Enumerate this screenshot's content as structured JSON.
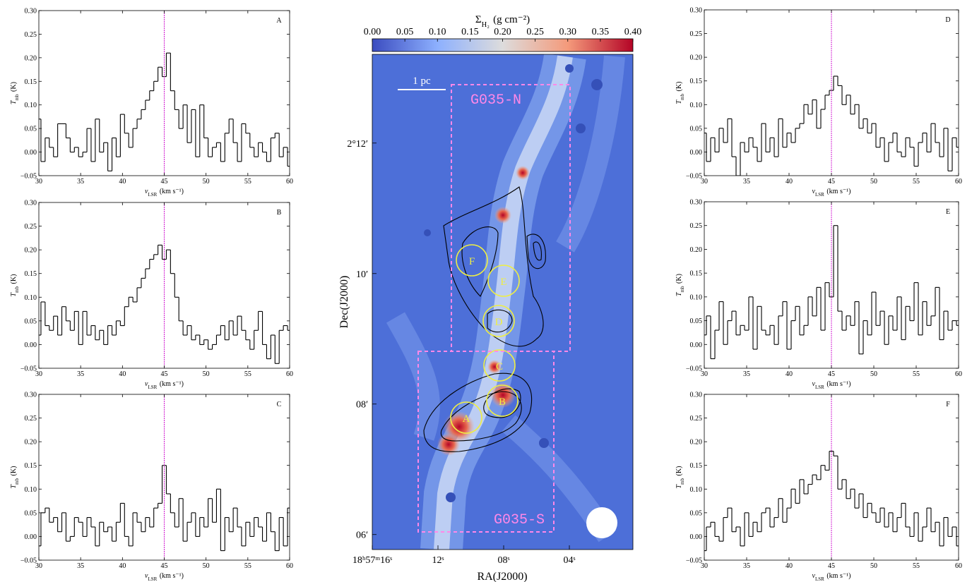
{
  "chart_data": [
    {
      "type": "step",
      "label": "A",
      "color": "#000000",
      "vline": 45,
      "vline_color": "#cc00cc",
      "x": [
        30,
        30.5,
        31,
        31.5,
        32,
        32.5,
        33,
        33.5,
        34,
        34.5,
        35,
        35.5,
        36,
        36.5,
        37,
        37.5,
        38,
        38.5,
        39,
        39.5,
        40,
        40.5,
        41,
        41.5,
        42,
        42.5,
        43,
        43.5,
        44,
        44.5,
        45,
        45.5,
        46,
        46.5,
        47,
        47.5,
        48,
        48.5,
        49,
        49.5,
        50,
        50.5,
        51,
        51.5,
        52,
        52.5,
        53,
        53.5,
        54,
        54.5,
        55,
        55.5,
        56,
        56.5,
        57,
        57.5,
        58,
        58.5,
        59,
        59.5,
        60
      ],
      "values": [
        0.07,
        -0.02,
        0.03,
        0.01,
        -0.01,
        0.06,
        0.06,
        0.03,
        0.0,
        0.01,
        -0.01,
        0.0,
        0.05,
        -0.02,
        0.07,
        0.0,
        0.02,
        -0.04,
        0.03,
        -0.01,
        0.08,
        0.04,
        0.01,
        0.05,
        0.07,
        0.09,
        0.11,
        0.13,
        0.15,
        0.18,
        0.16,
        0.21,
        0.13,
        0.09,
        0.05,
        0.1,
        0.02,
        0.09,
        -0.01,
        0.1,
        0.03,
        -0.01,
        0.01,
        0.02,
        -0.02,
        0.04,
        0.07,
        0.02,
        -0.02,
        0.06,
        0.04,
        0.01,
        -0.01,
        0.02,
        0.0,
        -0.02,
        0.03,
        0.04,
        -0.01,
        0.01,
        -0.03
      ],
      "xlim": [
        30,
        60
      ],
      "ylim": [
        -0.05,
        0.3
      ],
      "xticks": [
        30,
        35,
        40,
        45,
        50,
        55,
        60
      ],
      "yticks": [
        {
          "value": -0.05,
          "label": "−0.05"
        },
        {
          "value": 0,
          "label": "0.00"
        },
        {
          "value": 0.05,
          "label": "0.05"
        },
        {
          "value": 0.1,
          "label": "0.10"
        },
        {
          "value": 0.15,
          "label": "0.15"
        },
        {
          "value": 0.2,
          "label": "0.20"
        },
        {
          "value": 0.25,
          "label": "0.25"
        },
        {
          "value": 0.3,
          "label": "0.30"
        }
      ],
      "xlabel": {
        "main": "v",
        "sub": "LSR",
        "rest": "(km s⁻¹)"
      },
      "ylabel": {
        "main": "T",
        "sub": "mb",
        "rest": "(K)"
      }
    },
    {
      "type": "step",
      "label": "B",
      "color": "#000000",
      "vline": 45,
      "vline_color": "#cc00cc",
      "x": [
        30,
        30.5,
        31,
        31.5,
        32,
        32.5,
        33,
        33.5,
        34,
        34.5,
        35,
        35.5,
        36,
        36.5,
        37,
        37.5,
        38,
        38.5,
        39,
        39.5,
        40,
        40.5,
        41,
        41.5,
        42,
        42.5,
        43,
        43.5,
        44,
        44.5,
        45,
        45.5,
        46,
        46.5,
        47,
        47.5,
        48,
        48.5,
        49,
        49.5,
        50,
        50.5,
        51,
        51.5,
        52,
        52.5,
        53,
        53.5,
        54,
        54.5,
        55,
        55.5,
        56,
        56.5,
        57,
        57.5,
        58,
        58.5,
        59,
        59.5,
        60
      ],
      "values": [
        0.02,
        0.09,
        0.04,
        0.03,
        0.06,
        0.02,
        0.08,
        0.05,
        0.03,
        0.07,
        0.0,
        0.07,
        0.02,
        0.04,
        0.01,
        0.03,
        0.0,
        0.04,
        0.02,
        0.05,
        0.04,
        0.08,
        0.1,
        0.09,
        0.12,
        0.14,
        0.16,
        0.18,
        0.19,
        0.21,
        0.18,
        0.2,
        0.15,
        0.1,
        0.05,
        0.02,
        0.04,
        0.01,
        0.02,
        0.0,
        0.01,
        -0.01,
        0.0,
        0.02,
        0.04,
        0.01,
        0.05,
        0.02,
        0.06,
        0.03,
        0.01,
        -0.01,
        0.03,
        0.07,
        0.0,
        -0.03,
        0.02,
        -0.04,
        0.03,
        0.04,
        0.03
      ],
      "xlim": [
        30,
        60
      ],
      "ylim": [
        -0.05,
        0.3
      ],
      "xticks": [
        30,
        35,
        40,
        45,
        50,
        55,
        60
      ],
      "yticks": [
        {
          "value": -0.05,
          "label": "−0.05"
        },
        {
          "value": 0,
          "label": "0.00"
        },
        {
          "value": 0.05,
          "label": "0.05"
        },
        {
          "value": 0.1,
          "label": "0.10"
        },
        {
          "value": 0.15,
          "label": "0.15"
        },
        {
          "value": 0.2,
          "label": "0.20"
        },
        {
          "value": 0.25,
          "label": "0.25"
        },
        {
          "value": 0.3,
          "label": "0.30"
        }
      ],
      "xlabel": {
        "main": "v",
        "sub": "LSR",
        "rest": "(km s⁻¹)"
      },
      "ylabel": {
        "main": "T",
        "sub": "mb",
        "rest": "(K)"
      }
    },
    {
      "type": "step",
      "label": "C",
      "color": "#000000",
      "vline": 45,
      "vline_color": "#cc00cc",
      "x": [
        30,
        30.5,
        31,
        31.5,
        32,
        32.5,
        33,
        33.5,
        34,
        34.5,
        35,
        35.5,
        36,
        36.5,
        37,
        37.5,
        38,
        38.5,
        39,
        39.5,
        40,
        40.5,
        41,
        41.5,
        42,
        42.5,
        43,
        43.5,
        44,
        44.5,
        45,
        45.5,
        46,
        46.5,
        47,
        47.5,
        48,
        48.5,
        49,
        49.5,
        50,
        50.5,
        51,
        51.5,
        52,
        52.5,
        53,
        53.5,
        54,
        54.5,
        55,
        55.5,
        56,
        56.5,
        57,
        57.5,
        58,
        58.5,
        59,
        59.5,
        60
      ],
      "values": [
        -0.02,
        0.05,
        0.06,
        0.03,
        0.04,
        0.01,
        0.05,
        -0.01,
        0.0,
        0.04,
        0.03,
        0.0,
        0.04,
        0.02,
        -0.02,
        0.03,
        0.01,
        0.02,
        -0.01,
        0.03,
        0.07,
        0.0,
        -0.02,
        0.05,
        0.03,
        0.01,
        0.04,
        0.02,
        0.06,
        0.07,
        0.15,
        0.09,
        0.05,
        0.02,
        0.08,
        -0.01,
        0.03,
        0.05,
        0.0,
        0.04,
        0.02,
        0.08,
        0.03,
        0.1,
        -0.03,
        0.04,
        0.01,
        0.06,
        0.02,
        -0.02,
        0.03,
        0.0,
        0.04,
        0.02,
        -0.01,
        0.05,
        0.01,
        -0.03,
        0.04,
        -0.02,
        0.06
      ],
      "xlim": [
        30,
        60
      ],
      "ylim": [
        -0.05,
        0.3
      ],
      "xticks": [
        30,
        35,
        40,
        45,
        50,
        55,
        60
      ],
      "yticks": [
        {
          "value": -0.05,
          "label": "−0.05"
        },
        {
          "value": 0,
          "label": "0.00"
        },
        {
          "value": 0.05,
          "label": "0.05"
        },
        {
          "value": 0.1,
          "label": "0.10"
        },
        {
          "value": 0.15,
          "label": "0.15"
        },
        {
          "value": 0.2,
          "label": "0.20"
        },
        {
          "value": 0.25,
          "label": "0.25"
        },
        {
          "value": 0.3,
          "label": "0.30"
        }
      ],
      "xlabel": {
        "main": "v",
        "sub": "LSR",
        "rest": "(km s⁻¹)"
      },
      "ylabel": {
        "main": "T",
        "sub": "mb",
        "rest": "(K)"
      }
    },
    {
      "type": "step",
      "label": "D",
      "color": "#000000",
      "vline": 45,
      "vline_color": "#cc00cc",
      "x": [
        30,
        30.5,
        31,
        31.5,
        32,
        32.5,
        33,
        33.5,
        34,
        34.5,
        35,
        35.5,
        36,
        36.5,
        37,
        37.5,
        38,
        38.5,
        39,
        39.5,
        40,
        40.5,
        41,
        41.5,
        42,
        42.5,
        43,
        43.5,
        44,
        44.5,
        45,
        45.5,
        46,
        46.5,
        47,
        47.5,
        48,
        48.5,
        49,
        49.5,
        50,
        50.5,
        51,
        51.5,
        52,
        52.5,
        53,
        53.5,
        54,
        54.5,
        55,
        55.5,
        56,
        56.5,
        57,
        57.5,
        58,
        58.5,
        59,
        59.5,
        60
      ],
      "values": [
        0.04,
        -0.02,
        0.03,
        0.0,
        0.05,
        0.02,
        0.07,
        -0.01,
        -0.05,
        0.02,
        0.0,
        0.03,
        0.01,
        -0.02,
        0.06,
        0.0,
        0.03,
        -0.01,
        0.07,
        0.01,
        0.04,
        0.02,
        0.05,
        0.06,
        0.1,
        0.08,
        0.11,
        0.05,
        0.09,
        0.12,
        0.13,
        0.16,
        0.14,
        0.1,
        0.12,
        0.08,
        0.1,
        0.05,
        0.07,
        0.04,
        0.06,
        0.01,
        0.03,
        -0.02,
        0.02,
        0.04,
        0.0,
        -0.01,
        0.03,
        0.01,
        -0.03,
        0.02,
        0.04,
        0.0,
        0.06,
        0.02,
        -0.01,
        0.05,
        -0.04,
        0.03,
        0.01
      ],
      "xlim": [
        30,
        60
      ],
      "ylim": [
        -0.05,
        0.3
      ],
      "xticks": [
        30,
        35,
        40,
        45,
        50,
        55,
        60
      ],
      "yticks": [
        {
          "value": -0.05,
          "label": "−0.05"
        },
        {
          "value": 0,
          "label": "0.00"
        },
        {
          "value": 0.05,
          "label": "0.05"
        },
        {
          "value": 0.1,
          "label": "0.10"
        },
        {
          "value": 0.15,
          "label": "0.15"
        },
        {
          "value": 0.2,
          "label": "0.20"
        },
        {
          "value": 0.25,
          "label": "0.25"
        },
        {
          "value": 0.3,
          "label": "0.30"
        }
      ],
      "xlabel": {
        "main": "v",
        "sub": "LSR",
        "rest": "(km s⁻¹)"
      },
      "ylabel": {
        "main": "T",
        "sub": "mb",
        "rest": "(K)"
      }
    },
    {
      "type": "step",
      "label": "E",
      "color": "#000000",
      "vline": 45,
      "vline_color": "#cc00cc",
      "x": [
        30,
        30.5,
        31,
        31.5,
        32,
        32.5,
        33,
        33.5,
        34,
        34.5,
        35,
        35.5,
        36,
        36.5,
        37,
        37.5,
        38,
        38.5,
        39,
        39.5,
        40,
        40.5,
        41,
        41.5,
        42,
        42.5,
        43,
        43.5,
        44,
        44.5,
        45,
        45.5,
        46,
        46.5,
        47,
        47.5,
        48,
        48.5,
        49,
        49.5,
        50,
        50.5,
        51,
        51.5,
        52,
        52.5,
        53,
        53.5,
        54,
        54.5,
        55,
        55.5,
        56,
        56.5,
        57,
        57.5,
        58,
        58.5,
        59,
        59.5,
        60
      ],
      "values": [
        0.02,
        0.06,
        -0.03,
        0.03,
        0.09,
        0.0,
        0.05,
        0.07,
        0.02,
        0.04,
        0.03,
        0.1,
        -0.01,
        0.08,
        0.03,
        0.02,
        0.04,
        0.0,
        0.06,
        0.09,
        -0.01,
        0.05,
        0.08,
        0.02,
        0.04,
        0.1,
        0.06,
        0.12,
        0.03,
        0.13,
        0.1,
        0.25,
        0.07,
        0.03,
        0.06,
        0.04,
        0.09,
        -0.02,
        0.05,
        0.02,
        0.11,
        0.04,
        0.07,
        0.0,
        0.06,
        0.03,
        0.1,
        0.01,
        0.08,
        0.05,
        0.13,
        0.02,
        0.09,
        0.04,
        0.06,
        0.12,
        0.01,
        0.07,
        0.03,
        0.05,
        0.04
      ],
      "xlim": [
        30,
        60
      ],
      "ylim": [
        -0.05,
        0.3
      ],
      "xticks": [
        30,
        35,
        40,
        45,
        50,
        55,
        60
      ],
      "yticks": [
        {
          "value": -0.05,
          "label": "−0.05"
        },
        {
          "value": 0,
          "label": "0.00"
        },
        {
          "value": 0.05,
          "label": "0.05"
        },
        {
          "value": 0.1,
          "label": "0.10"
        },
        {
          "value": 0.15,
          "label": "0.15"
        },
        {
          "value": 0.2,
          "label": "0.20"
        },
        {
          "value": 0.25,
          "label": "0.25"
        },
        {
          "value": 0.3,
          "label": "0.30"
        }
      ],
      "xlabel": {
        "main": "v",
        "sub": "LSR",
        "rest": "(km s⁻¹)"
      },
      "ylabel": {
        "main": "T",
        "sub": "mb",
        "rest": "(K)"
      }
    },
    {
      "type": "step",
      "label": "F",
      "color": "#000000",
      "vline": 45,
      "vline_color": "#cc00cc",
      "x": [
        30,
        30.5,
        31,
        31.5,
        32,
        32.5,
        33,
        33.5,
        34,
        34.5,
        35,
        35.5,
        36,
        36.5,
        37,
        37.5,
        38,
        38.5,
        39,
        39.5,
        40,
        40.5,
        41,
        41.5,
        42,
        42.5,
        43,
        43.5,
        44,
        44.5,
        45,
        45.5,
        46,
        46.5,
        47,
        47.5,
        48,
        48.5,
        49,
        49.5,
        50,
        50.5,
        51,
        51.5,
        52,
        52.5,
        53,
        53.5,
        54,
        54.5,
        55,
        55.5,
        56,
        56.5,
        57,
        57.5,
        58,
        58.5,
        59,
        59.5,
        60
      ],
      "values": [
        -0.03,
        0.02,
        0.03,
        0.0,
        -0.01,
        0.04,
        0.06,
        0.01,
        0.02,
        -0.02,
        0.05,
        0.0,
        0.03,
        0.01,
        0.05,
        0.06,
        0.02,
        0.04,
        0.08,
        0.03,
        0.06,
        0.1,
        0.07,
        0.12,
        0.09,
        0.11,
        0.13,
        0.12,
        0.15,
        0.14,
        0.18,
        0.17,
        0.1,
        0.12,
        0.08,
        0.1,
        0.06,
        0.09,
        0.04,
        0.07,
        0.05,
        0.03,
        0.06,
        0.02,
        0.05,
        0.01,
        0.04,
        0.07,
        0.02,
        0.0,
        0.05,
        -0.01,
        0.02,
        0.06,
        0.01,
        0.03,
        -0.02,
        0.04,
        0.0,
        0.02,
        -0.02
      ],
      "xlim": [
        30,
        60
      ],
      "ylim": [
        -0.05,
        0.3
      ],
      "xticks": [
        30,
        35,
        40,
        45,
        50,
        55,
        60
      ],
      "yticks": [
        {
          "value": -0.05,
          "label": "−0.05"
        },
        {
          "value": 0,
          "label": "0.00"
        },
        {
          "value": 0.05,
          "label": "0.05"
        },
        {
          "value": 0.1,
          "label": "0.10"
        },
        {
          "value": 0.15,
          "label": "0.15"
        },
        {
          "value": 0.2,
          "label": "0.20"
        },
        {
          "value": 0.25,
          "label": "0.25"
        },
        {
          "value": 0.3,
          "label": "0.30"
        }
      ],
      "xlabel": {
        "main": "v",
        "sub": "LSR",
        "rest": "(km s⁻¹)"
      },
      "ylabel": {
        "main": "T",
        "sub": "mb",
        "rest": "(K)"
      }
    },
    {
      "type": "image",
      "xlabel": "RA(J2000)",
      "ylabel": "Dec(J2000)",
      "xlim": [
        16,
        0.13
      ],
      "ylim": [
        5.77,
        13.36
      ],
      "xticks": [
        {
          "value": 16,
          "label": "18ʰ57ᵐ16ˢ"
        },
        {
          "value": 12,
          "label": "12ˢ"
        },
        {
          "value": 8,
          "label": "08ˢ"
        },
        {
          "value": 4,
          "label": "04ˢ"
        }
      ],
      "yticks": [
        {
          "value": 12,
          "label": "2°12′"
        },
        {
          "value": 10,
          "label": "10′"
        },
        {
          "value": 8,
          "label": "08′"
        },
        {
          "value": 6,
          "label": "06′"
        }
      ],
      "colorbar": {
        "label": {
          "main": "Σ",
          "sub": "H₂",
          "rest": "(g cm⁻²)"
        },
        "lim": [
          0,
          0.4
        ],
        "ticks": [
          {
            "value": 0,
            "label": "0.00"
          },
          {
            "value": 0.05,
            "label": "0.05"
          },
          {
            "value": 0.1,
            "label": "0.10"
          },
          {
            "value": 0.15,
            "label": "0.15"
          },
          {
            "value": 0.2,
            "label": "0.20"
          },
          {
            "value": 0.25,
            "label": "0.25"
          },
          {
            "value": 0.3,
            "label": "0.30"
          },
          {
            "value": 0.35,
            "label": "0.35"
          },
          {
            "value": 0.4,
            "label": "0.40"
          }
        ],
        "colormap": [
          "#3b4cc0",
          "#8db0fe",
          "#dddcdc",
          "#f49a7b",
          "#b40426"
        ]
      },
      "scale_bar": "1 pc",
      "regions": [
        "G035-N",
        "G035-S"
      ],
      "cores": [
        "A",
        "B",
        "C",
        "D",
        "E",
        "F"
      ]
    }
  ]
}
